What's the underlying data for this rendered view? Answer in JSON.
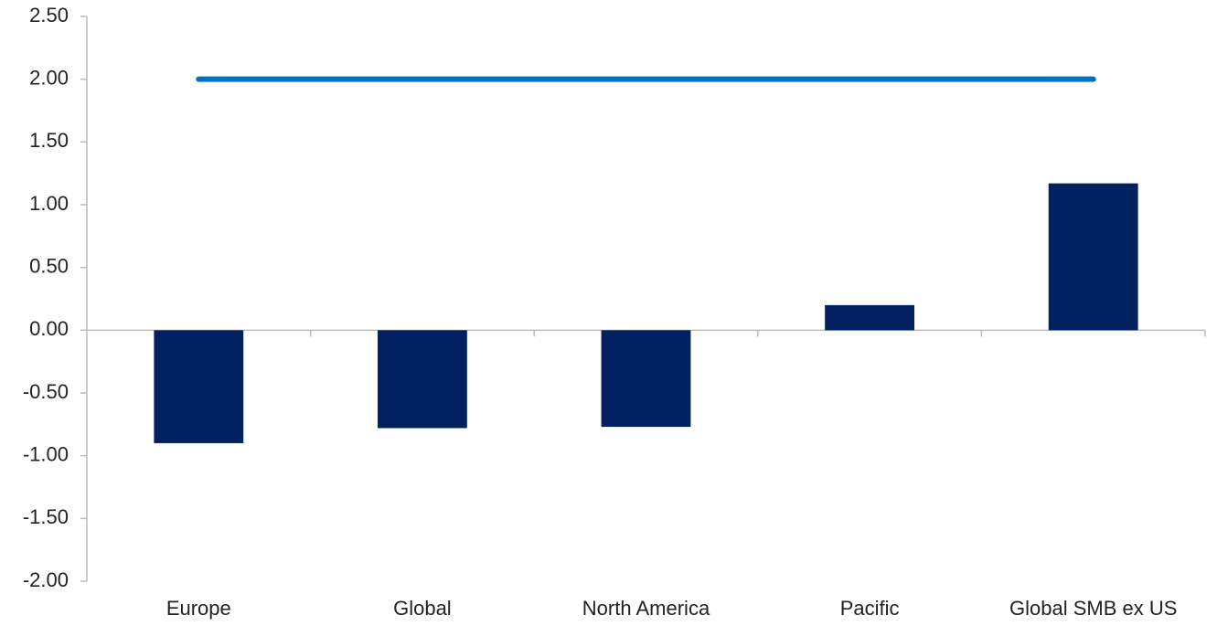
{
  "chart_data": {
    "type": "bar",
    "categories": [
      "Europe",
      "Global",
      "North America",
      "Pacific",
      "Global SMB ex US"
    ],
    "series": [
      {
        "type": "bar",
        "color": "#002060",
        "values": [
          -0.9,
          -0.78,
          -0.77,
          0.2,
          1.17
        ]
      },
      {
        "type": "line",
        "color": "#0070c0",
        "values": [
          2.0,
          2.0,
          2.0,
          2.0,
          2.0
        ]
      }
    ],
    "ylim": [
      -2.0,
      2.5
    ],
    "yticks": [
      {
        "value": -2.0,
        "label": "-2.00"
      },
      {
        "value": -1.5,
        "label": "-1.50"
      },
      {
        "value": -1.0,
        "label": "-1.00"
      },
      {
        "value": -0.5,
        "label": "-0.50"
      },
      {
        "value": 0,
        "label": "0.00"
      },
      {
        "value": 0.5,
        "label": "0.50"
      },
      {
        "value": 1.0,
        "label": "1.00"
      },
      {
        "value": 1.5,
        "label": "1.50"
      },
      {
        "value": 2.0,
        "label": "2.00"
      },
      {
        "value": 2.5,
        "label": "2.50"
      }
    ],
    "grid": false
  }
}
